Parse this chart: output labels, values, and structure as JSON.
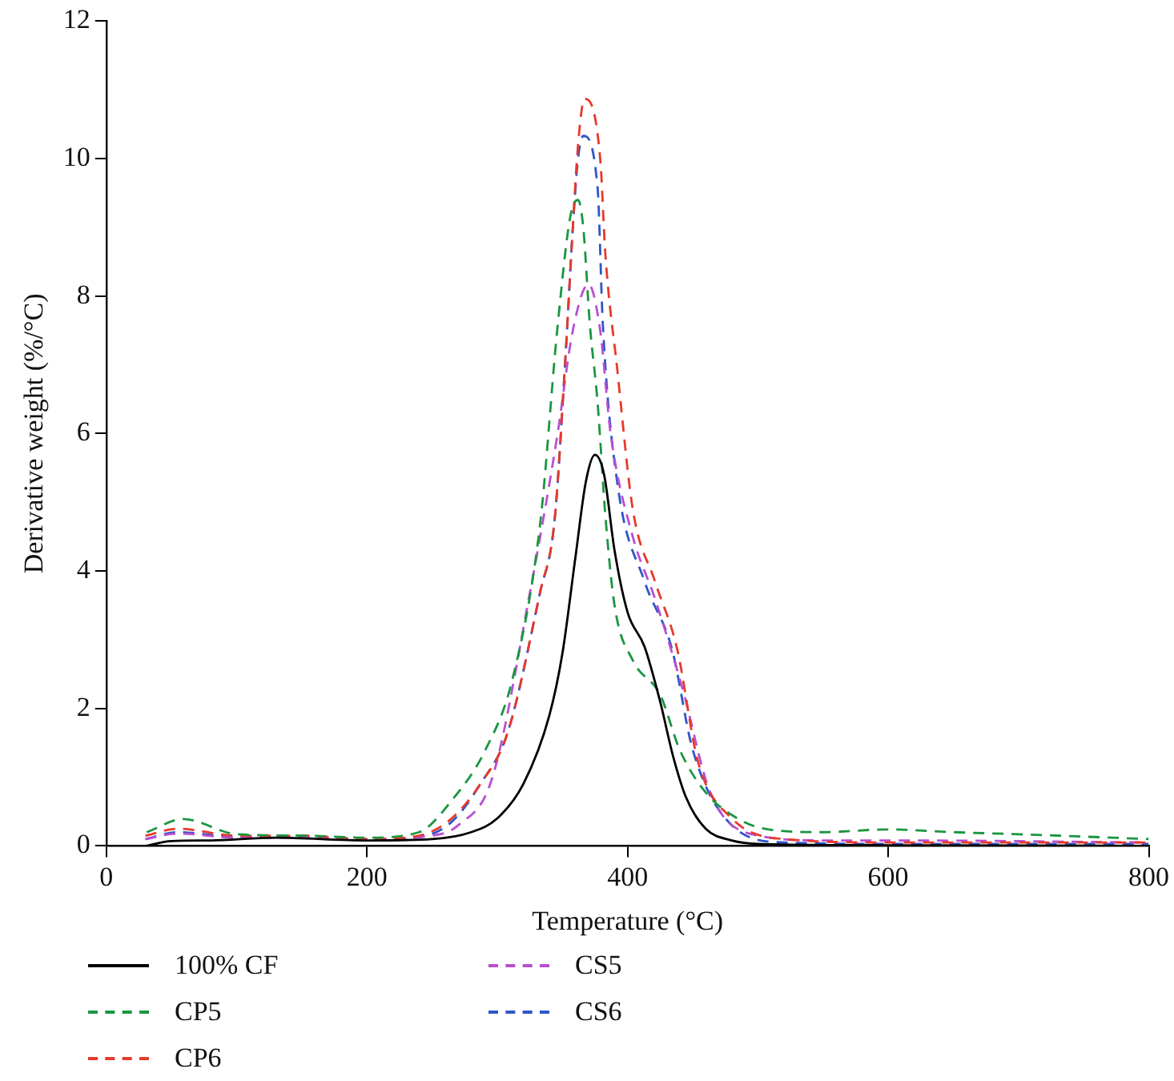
{
  "chart_data": {
    "type": "line",
    "xlabel": "Temperature (°C)",
    "ylabel": "Derivative weight (%/°C)",
    "xlim": [
      0,
      800
    ],
    "xticks": [
      0,
      200,
      400,
      600,
      800
    ],
    "ylim": [
      0,
      12
    ],
    "yticks": [
      0,
      2,
      4,
      6,
      8,
      10,
      12
    ],
    "grid": false,
    "legend": "bottom",
    "marker": "none",
    "series": [
      {
        "name": "100% CF",
        "color": "#000000",
        "line_style": "solid",
        "x": [
          30,
          50,
          80,
          130,
          200,
          250,
          280,
          300,
          320,
          340,
          350,
          360,
          368,
          375,
          382,
          390,
          400,
          413,
          425,
          435,
          445,
          460,
          480,
          500,
          600,
          800
        ],
        "values": [
          0.0,
          0.07,
          0.08,
          0.12,
          0.08,
          0.1,
          0.2,
          0.4,
          0.9,
          1.9,
          2.8,
          4.2,
          5.3,
          5.69,
          5.4,
          4.3,
          3.4,
          2.9,
          2.1,
          1.3,
          0.7,
          0.25,
          0.08,
          0.03,
          0.01,
          0.0
        ]
      },
      {
        "name": "CP5",
        "color": "#1a9641",
        "line_style": "dashed",
        "x": [
          31,
          59,
          100,
          150,
          200,
          240,
          265,
          291,
          312,
          333,
          346,
          356,
          362,
          366,
          371,
          377,
          383,
          390,
          404,
          425,
          440,
          459,
          480,
          505,
          550,
          600,
          650,
          700,
          800
        ],
        "values": [
          0.2,
          0.39,
          0.17,
          0.15,
          0.12,
          0.2,
          0.66,
          1.4,
          2.45,
          4.7,
          7.5,
          9.15,
          9.4,
          9.0,
          7.6,
          6.45,
          4.8,
          3.5,
          2.7,
          2.2,
          1.4,
          0.8,
          0.45,
          0.25,
          0.2,
          0.24,
          0.2,
          0.17,
          0.1
        ]
      },
      {
        "name": "CP6",
        "color": "#e8392b",
        "line_style": "dashed",
        "x": [
          30,
          55,
          100,
          150,
          200,
          240,
          265,
          287,
          308,
          333,
          344,
          352,
          358,
          362,
          367,
          379,
          383,
          392,
          404,
          421,
          438,
          454,
          480,
          520,
          600,
          800
        ],
        "values": [
          0.15,
          0.25,
          0.15,
          0.15,
          0.1,
          0.15,
          0.4,
          0.9,
          1.65,
          3.7,
          4.74,
          7.0,
          9.0,
          10.2,
          10.87,
          10.0,
          8.6,
          6.95,
          4.9,
          3.85,
          2.87,
          1.23,
          0.4,
          0.1,
          0.05,
          0.05
        ]
      },
      {
        "name": "CS5",
        "color": "#b84fd1",
        "line_style": "dashed",
        "x": [
          30,
          55,
          100,
          150,
          200,
          250,
          270,
          296,
          325,
          346,
          358,
          370,
          379,
          387,
          404,
          421,
          442,
          463,
          490,
          550,
          600,
          800
        ],
        "values": [
          0.1,
          0.18,
          0.12,
          0.12,
          0.1,
          0.15,
          0.3,
          0.98,
          3.68,
          5.96,
          7.5,
          8.17,
          7.5,
          6.0,
          4.5,
          3.6,
          2.3,
          0.8,
          0.2,
          0.08,
          0.08,
          0.05
        ]
      },
      {
        "name": "CS6",
        "color": "#2e56c8",
        "line_style": "dashed",
        "x": [
          30,
          55,
          100,
          150,
          200,
          240,
          265,
          287,
          308,
          333,
          344,
          352,
          358,
          362,
          366,
          377,
          381,
          392,
          413,
          434,
          450,
          480,
          520,
          600,
          800
        ],
        "values": [
          0.1,
          0.2,
          0.13,
          0.14,
          0.1,
          0.13,
          0.35,
          0.9,
          1.65,
          3.7,
          4.74,
          7.0,
          9.0,
          10.0,
          10.33,
          9.57,
          7.6,
          5.3,
          3.85,
          2.87,
          1.4,
          0.3,
          0.05,
          0.03,
          0.03
        ]
      }
    ]
  }
}
